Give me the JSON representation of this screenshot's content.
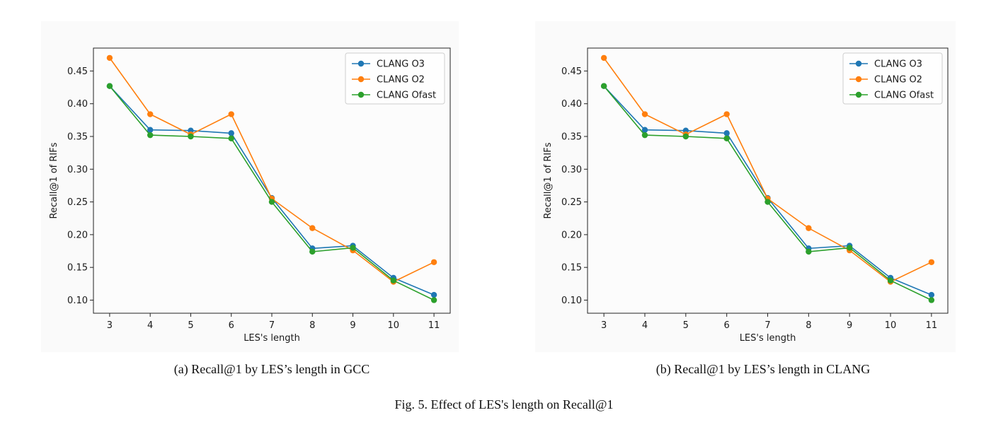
{
  "figure_caption": "Fig. 5.  Effect of LES's length on Recall@1",
  "colors": {
    "CLANG O3": "#1f77b4",
    "CLANG O2": "#ff7f0e",
    "CLANG Ofast": "#2ca02c"
  },
  "chart_data": [
    {
      "type": "line",
      "caption": "(a) Recall@1 by LES’s length in GCC",
      "xlabel": "LES's length",
      "ylabel": "Recall@1 of RIFs",
      "x": [
        3,
        4,
        5,
        6,
        7,
        8,
        9,
        10,
        11
      ],
      "ylim": [
        0.08,
        0.485
      ],
      "yticks": [
        0.1,
        0.15,
        0.2,
        0.25,
        0.3,
        0.35,
        0.4,
        0.45
      ],
      "ytick_labels": [
        "0.10",
        "0.15",
        "0.20",
        "0.25",
        "0.30",
        "0.35",
        "0.40",
        "0.45"
      ],
      "grid": false,
      "legend": "top-right",
      "series": [
        {
          "name": "CLANG O3",
          "values": [
            0.427,
            0.36,
            0.359,
            0.355,
            0.256,
            0.179,
            0.183,
            0.134,
            0.108
          ]
        },
        {
          "name": "CLANG O2",
          "values": [
            0.47,
            0.384,
            0.353,
            0.384,
            0.255,
            0.21,
            0.176,
            0.128,
            0.158
          ]
        },
        {
          "name": "CLANG Ofast",
          "values": [
            0.427,
            0.352,
            0.35,
            0.347,
            0.25,
            0.174,
            0.18,
            0.13,
            0.1
          ]
        }
      ]
    },
    {
      "type": "line",
      "caption": "(b) Recall@1 by LES’s length in CLANG",
      "xlabel": "LES's length",
      "ylabel": "Recall@1 of RIFs",
      "x": [
        3,
        4,
        5,
        6,
        7,
        8,
        9,
        10,
        11
      ],
      "ylim": [
        0.08,
        0.485
      ],
      "yticks": [
        0.1,
        0.15,
        0.2,
        0.25,
        0.3,
        0.35,
        0.4,
        0.45
      ],
      "ytick_labels": [
        "0.10",
        "0.15",
        "0.20",
        "0.25",
        "0.30",
        "0.35",
        "0.40",
        "0.45"
      ],
      "grid": false,
      "legend": "top-right",
      "series": [
        {
          "name": "CLANG O3",
          "values": [
            0.427,
            0.36,
            0.359,
            0.355,
            0.256,
            0.179,
            0.183,
            0.134,
            0.108
          ]
        },
        {
          "name": "CLANG O2",
          "values": [
            0.47,
            0.384,
            0.353,
            0.384,
            0.255,
            0.21,
            0.176,
            0.128,
            0.158
          ]
        },
        {
          "name": "CLANG Ofast",
          "values": [
            0.427,
            0.352,
            0.35,
            0.347,
            0.25,
            0.174,
            0.18,
            0.13,
            0.1
          ]
        }
      ]
    }
  ]
}
